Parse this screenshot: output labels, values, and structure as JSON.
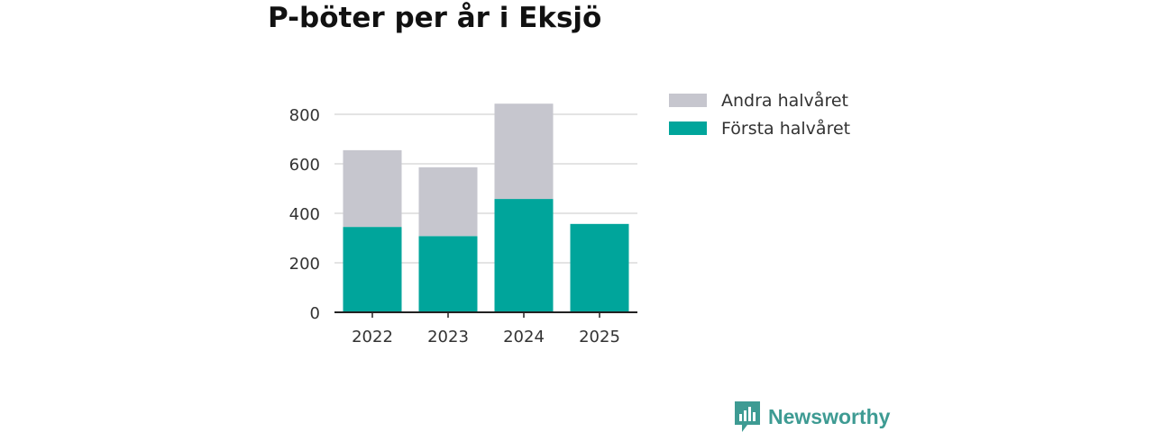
{
  "chart_data": {
    "type": "bar",
    "stacked": true,
    "title": "P-böter per år i Eksjö",
    "categories": [
      "2022",
      "2023",
      "2024",
      "2025"
    ],
    "series": [
      {
        "name": "Första halvåret",
        "color": "#00a59b",
        "values": [
          345,
          308,
          458,
          357
        ]
      },
      {
        "name": "Andra halvåret",
        "color": "#c6c6ce",
        "values": [
          310,
          278,
          385,
          0
        ]
      }
    ],
    "y_ticks": [
      0,
      200,
      400,
      600,
      800
    ],
    "ylim": [
      0,
      850
    ],
    "grid": true,
    "legend_position": "right",
    "legend_order": [
      "Andra halvåret",
      "Första halvåret"
    ]
  },
  "brand": {
    "name": "Newsworthy",
    "icon": "newsworthy-logo-icon",
    "color": "#3e9b93"
  }
}
